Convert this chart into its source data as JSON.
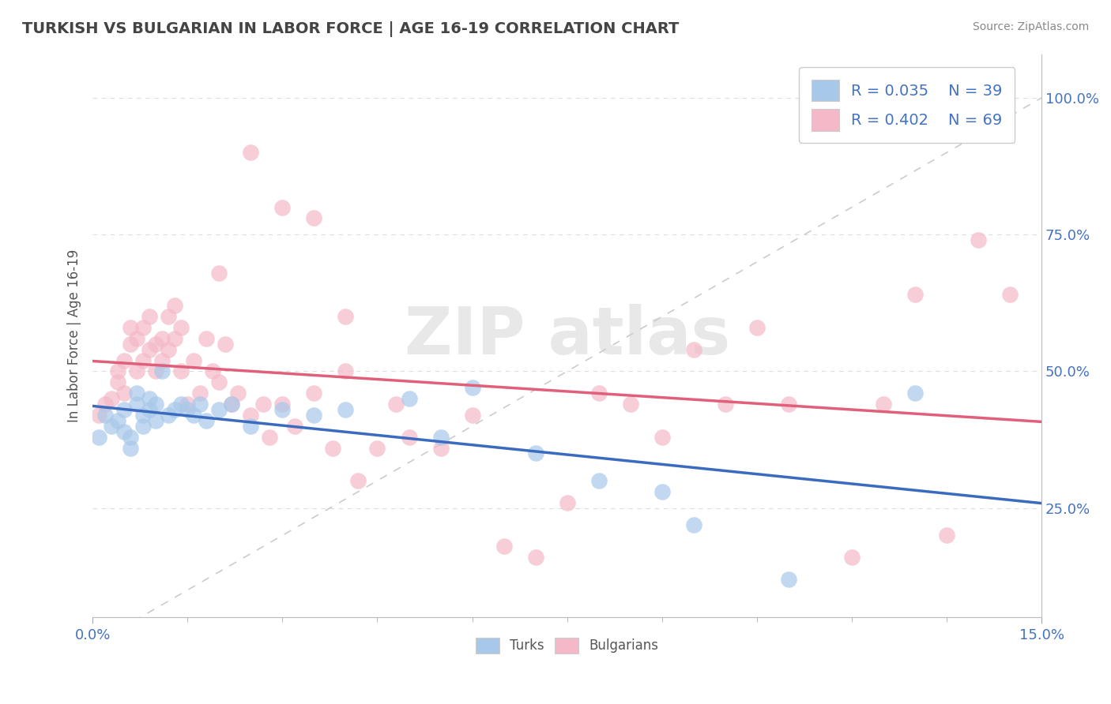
{
  "title": "TURKISH VS BULGARIAN IN LABOR FORCE | AGE 16-19 CORRELATION CHART",
  "source": "Source: ZipAtlas.com",
  "ylabel": "In Labor Force | Age 16-19",
  "xlim": [
    0.0,
    0.15
  ],
  "ylim": [
    0.05,
    1.08
  ],
  "yticks": [
    0.25,
    0.5,
    0.75,
    1.0
  ],
  "ytick_labels": [
    "25.0%",
    "50.0%",
    "75.0%",
    "100.0%"
  ],
  "xtick_labels": [
    "0.0%",
    "15.0%"
  ],
  "background_color": "#ffffff",
  "grid_color": "#dddddd",
  "turks_color": "#a8c8ea",
  "bulgarians_color": "#f4b8c8",
  "turks_line_color": "#3a6bbf",
  "bulgarians_line_color": "#e0607a",
  "R_turks": 0.035,
  "N_turks": 39,
  "R_bulgarians": 0.402,
  "N_bulgarians": 69,
  "legend_text_color": "#4472c4",
  "turks_x": [
    0.001,
    0.002,
    0.003,
    0.004,
    0.005,
    0.005,
    0.006,
    0.006,
    0.007,
    0.007,
    0.008,
    0.008,
    0.009,
    0.009,
    0.01,
    0.01,
    0.011,
    0.012,
    0.013,
    0.014,
    0.015,
    0.016,
    0.017,
    0.018,
    0.02,
    0.022,
    0.025,
    0.03,
    0.035,
    0.04,
    0.05,
    0.055,
    0.06,
    0.07,
    0.08,
    0.09,
    0.095,
    0.11,
    0.13
  ],
  "turks_y": [
    0.38,
    0.42,
    0.4,
    0.41,
    0.43,
    0.39,
    0.38,
    0.36,
    0.44,
    0.46,
    0.42,
    0.4,
    0.43,
    0.45,
    0.44,
    0.41,
    0.5,
    0.42,
    0.43,
    0.44,
    0.43,
    0.42,
    0.44,
    0.41,
    0.43,
    0.44,
    0.4,
    0.43,
    0.42,
    0.43,
    0.45,
    0.38,
    0.47,
    0.35,
    0.3,
    0.28,
    0.22,
    0.12,
    0.46
  ],
  "bulgarians_x": [
    0.001,
    0.002,
    0.003,
    0.004,
    0.004,
    0.005,
    0.005,
    0.006,
    0.006,
    0.007,
    0.007,
    0.008,
    0.008,
    0.009,
    0.009,
    0.01,
    0.01,
    0.011,
    0.011,
    0.012,
    0.012,
    0.013,
    0.013,
    0.014,
    0.014,
    0.015,
    0.016,
    0.017,
    0.018,
    0.019,
    0.02,
    0.021,
    0.022,
    0.023,
    0.025,
    0.027,
    0.028,
    0.03,
    0.032,
    0.035,
    0.038,
    0.04,
    0.042,
    0.045,
    0.048,
    0.05,
    0.055,
    0.06,
    0.065,
    0.07,
    0.075,
    0.08,
    0.085,
    0.09,
    0.095,
    0.1,
    0.105,
    0.11,
    0.12,
    0.125,
    0.13,
    0.135,
    0.14,
    0.145,
    0.02,
    0.025,
    0.03,
    0.035,
    0.04
  ],
  "bulgarians_y": [
    0.42,
    0.44,
    0.45,
    0.48,
    0.5,
    0.46,
    0.52,
    0.55,
    0.58,
    0.5,
    0.56,
    0.52,
    0.58,
    0.54,
    0.6,
    0.5,
    0.55,
    0.52,
    0.56,
    0.54,
    0.6,
    0.56,
    0.62,
    0.5,
    0.58,
    0.44,
    0.52,
    0.46,
    0.56,
    0.5,
    0.48,
    0.55,
    0.44,
    0.46,
    0.42,
    0.44,
    0.38,
    0.44,
    0.4,
    0.46,
    0.36,
    0.5,
    0.3,
    0.36,
    0.44,
    0.38,
    0.36,
    0.42,
    0.18,
    0.16,
    0.26,
    0.46,
    0.44,
    0.38,
    0.54,
    0.44,
    0.58,
    0.44,
    0.16,
    0.44,
    0.64,
    0.2,
    0.74,
    0.64,
    0.68,
    0.9,
    0.8,
    0.78,
    0.6
  ]
}
